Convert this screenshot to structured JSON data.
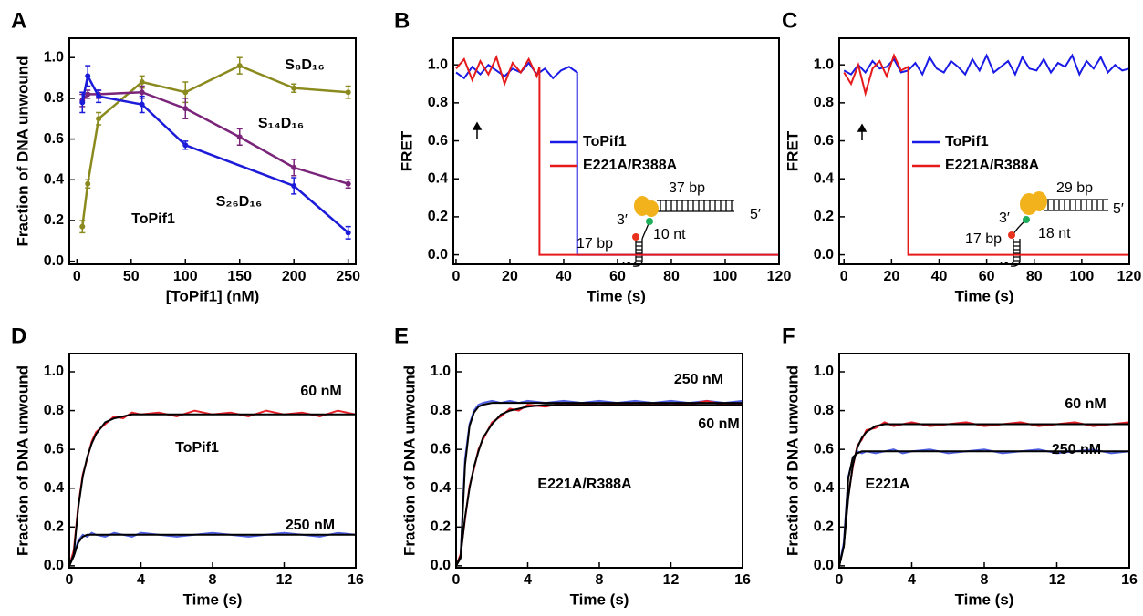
{
  "chart_data": [
    {
      "type": "line",
      "panel_label": "A",
      "xlabel": "[ToPif1] (nM)",
      "ylabel": "Fraction of DNA unwound",
      "annotation": "ToPif1",
      "x": [
        5,
        10,
        20,
        60,
        100,
        150,
        200,
        250
      ],
      "xlim": [
        -7,
        257
      ],
      "xticks": [
        0,
        50,
        100,
        150,
        200,
        250
      ],
      "ylim": [
        -0.015,
        1.095
      ],
      "yticks": [
        {
          "value": 0,
          "label": "0.0"
        },
        0.2,
        0.4,
        0.6,
        0.8,
        {
          "value": 1,
          "label": "1.0"
        }
      ],
      "series": [
        {
          "name": "S₈D₁₆",
          "color": "#8a8a1e",
          "values": [
            0.17,
            0.38,
            0.7,
            0.88,
            0.83,
            0.96,
            0.85,
            0.83
          ],
          "errors": [
            0.03,
            0.02,
            0.03,
            0.03,
            0.05,
            0.04,
            0.02,
            0.03
          ]
        },
        {
          "name": "S₁₄D₁₆",
          "color": "#7a247a",
          "values": [
            0.79,
            0.82,
            0.82,
            0.83,
            0.75,
            0.61,
            0.46,
            0.38
          ],
          "errors": [
            0.03,
            0.02,
            0.02,
            0.03,
            0.05,
            0.04,
            0.04,
            0.02
          ]
        },
        {
          "name": "S₂₆D₁₆",
          "color": "#1b1bd9",
          "x": [
            5,
            10,
            20,
            60,
            100,
            200,
            250
          ],
          "values": [
            0.78,
            0.91,
            0.81,
            0.77,
            0.57,
            0.37,
            0.14
          ],
          "errors": [
            0.05,
            0.05,
            0.03,
            0.04,
            0.02,
            0.04,
            0.03
          ]
        }
      ]
    },
    {
      "type": "line",
      "panel_label": "B",
      "xlabel": "Time (s)",
      "ylabel": "FRET",
      "legend": true,
      "xlim": [
        -1,
        120
      ],
      "xticks": [
        0,
        20,
        40,
        60,
        80,
        100,
        120
      ],
      "ylim": [
        -0.05,
        1.14
      ],
      "yticks": [
        {
          "value": 0,
          "label": "0.0"
        },
        0.2,
        0.4,
        0.6,
        0.8,
        {
          "value": 1,
          "label": "1.0"
        }
      ],
      "inset_labels": [
        "37 bp",
        "5′",
        "3′",
        "10 nt",
        "17 bp"
      ],
      "series": [
        {
          "name": "ToPif1",
          "color": "#1a1ae6",
          "x": [
            0,
            3,
            6,
            9,
            12,
            15,
            18,
            21,
            24,
            27,
            30,
            33,
            36,
            39,
            42,
            45,
            45,
            120
          ],
          "values": [
            0.96,
            0.93,
            0.99,
            0.95,
            1.0,
            0.97,
            0.94,
            0.98,
            0.96,
            1.01,
            0.95,
            0.98,
            0.93,
            0.97,
            0.99,
            0.96,
            0,
            0
          ]
        },
        {
          "name": "E221A/R388A",
          "color": "#e61a1a",
          "x": [
            0,
            3,
            6,
            9,
            12,
            15,
            18,
            21,
            24,
            27,
            30,
            31,
            31,
            120
          ],
          "values": [
            0.98,
            1.03,
            0.92,
            1.02,
            0.95,
            1.04,
            0.9,
            1.01,
            0.96,
            1.03,
            0.94,
            0.99,
            0,
            0
          ]
        }
      ]
    },
    {
      "type": "line",
      "panel_label": "C",
      "xlabel": "Time (s)",
      "ylabel": "FRET",
      "legend": true,
      "xlim": [
        -2,
        120
      ],
      "xticks": [
        0,
        20,
        40,
        60,
        80,
        100,
        120
      ],
      "ylim": [
        -0.05,
        1.14
      ],
      "yticks": [
        {
          "value": 0,
          "label": "0.0"
        },
        0.2,
        0.4,
        0.6,
        0.8,
        {
          "value": 1,
          "label": "1.0"
        }
      ],
      "inset_labels": [
        "29 bp",
        "5′",
        "3′",
        "18 nt",
        "17 bp"
      ],
      "series": [
        {
          "name": "ToPif1",
          "color": "#1a1ae6",
          "x": [
            0,
            3,
            6,
            9,
            12,
            15,
            18,
            21,
            24,
            27,
            30,
            33,
            36,
            39,
            42,
            45,
            48,
            51,
            54,
            57,
            60,
            63,
            66,
            69,
            72,
            75,
            78,
            81,
            84,
            87,
            90,
            93,
            96,
            99,
            102,
            105,
            108,
            111,
            114,
            117,
            120
          ],
          "values": [
            0.97,
            0.95,
            1.0,
            0.96,
            1.02,
            0.98,
            0.99,
            1.03,
            0.96,
            0.97,
            1.01,
            0.95,
            1.04,
            0.98,
            0.96,
            1.02,
            0.99,
            0.95,
            1.03,
            0.97,
            1.05,
            0.96,
            0.99,
            1.02,
            0.95,
            1.04,
            0.98,
            0.97,
            1.03,
            0.96,
            1.01,
            0.99,
            1.05,
            0.95,
            1.02,
            0.98,
            1.04,
            0.96,
            1.0,
            0.97,
            0.98
          ]
        },
        {
          "name": "E221A/R388A",
          "color": "#e61a1a",
          "x": [
            0,
            3,
            6,
            9,
            12,
            15,
            18,
            21,
            24,
            27,
            27,
            120
          ],
          "values": [
            0.96,
            0.9,
            1.0,
            0.85,
            0.98,
            1.02,
            0.94,
            1.05,
            0.97,
            0.99,
            0,
            0
          ]
        }
      ]
    },
    {
      "type": "line",
      "panel_label": "D",
      "xlabel": "Time (s)",
      "ylabel": "Fraction of DNA unwound",
      "annotation": "ToPif1",
      "x": [
        0,
        0.25,
        0.5,
        0.75,
        1,
        1.25,
        1.5,
        2,
        2.5,
        3,
        3.5,
        4,
        5,
        6,
        7,
        8,
        9,
        10,
        11,
        12,
        13,
        14,
        15,
        16
      ],
      "xlim": [
        0,
        16
      ],
      "xticks": [
        0,
        4,
        8,
        12,
        16
      ],
      "ylim": [
        -0.01,
        1.094
      ],
      "yticks": [
        {
          "value": 0,
          "label": "0.0"
        },
        0.2,
        0.4,
        0.6,
        0.8,
        {
          "value": 1,
          "label": "1.0"
        }
      ],
      "series": [
        {
          "name": "60 nM",
          "color": "#e8202a",
          "values": [
            0,
            0.08,
            0.31,
            0.47,
            0.55,
            0.64,
            0.69,
            0.73,
            0.77,
            0.76,
            0.79,
            0.78,
            0.79,
            0.77,
            0.8,
            0.78,
            0.79,
            0.77,
            0.8,
            0.78,
            0.79,
            0.77,
            0.8,
            0.78
          ]
        },
        {
          "name": "250 nM",
          "color": "#4f5fe0",
          "values": [
            0,
            0.06,
            0.13,
            0.16,
            0.15,
            0.17,
            0.16,
            0.15,
            0.17,
            0.16,
            0.15,
            0.17,
            0.16,
            0.15,
            0.16,
            0.17,
            0.16,
            0.15,
            0.16,
            0.17,
            0.16,
            0.15,
            0.17,
            0.16
          ]
        },
        {
          "color": "#000000",
          "values": [
            0,
            0.06,
            0.3,
            0.46,
            0.56,
            0.63,
            0.68,
            0.74,
            0.76,
            0.77,
            0.78,
            0.78,
            0.78,
            0.78,
            0.78,
            0.78,
            0.78,
            0.78,
            0.78,
            0.78,
            0.78,
            0.78,
            0.78,
            0.78
          ]
        },
        {
          "color": "#000000",
          "values": [
            0,
            0.05,
            0.12,
            0.15,
            0.16,
            0.16,
            0.16,
            0.16,
            0.16,
            0.16,
            0.16,
            0.16,
            0.16,
            0.16,
            0.16,
            0.16,
            0.16,
            0.16,
            0.16,
            0.16,
            0.16,
            0.16,
            0.16,
            0.16
          ]
        }
      ]
    },
    {
      "type": "line",
      "panel_label": "E",
      "xlabel": "Time (s)",
      "ylabel": "Fraction of DNA unwound",
      "annotation": "E221A/R388A",
      "x": [
        0,
        0.25,
        0.5,
        0.75,
        1,
        1.25,
        1.5,
        2,
        2.5,
        3,
        3.5,
        4,
        5,
        6,
        7,
        8,
        9,
        10,
        11,
        12,
        13,
        14,
        15,
        16
      ],
      "xlim": [
        0,
        16
      ],
      "xticks": [
        0,
        4,
        8,
        12,
        16
      ],
      "ylim": [
        -0.01,
        1.094
      ],
      "yticks": [
        {
          "value": 0,
          "label": "0.0"
        },
        0.2,
        0.4,
        0.6,
        0.8,
        {
          "value": 1,
          "label": "1.0"
        }
      ],
      "series": [
        {
          "name": "250 nM",
          "color": "#4f5fe0",
          "values": [
            0,
            0.05,
            0.55,
            0.73,
            0.8,
            0.83,
            0.84,
            0.85,
            0.84,
            0.85,
            0.84,
            0.85,
            0.84,
            0.85,
            0.84,
            0.85,
            0.84,
            0.85,
            0.84,
            0.85,
            0.84,
            0.85,
            0.84,
            0.85
          ]
        },
        {
          "name": "60 nM",
          "color": "#e8202a",
          "values": [
            0,
            0.06,
            0.24,
            0.41,
            0.5,
            0.6,
            0.65,
            0.74,
            0.77,
            0.81,
            0.8,
            0.83,
            0.82,
            0.84,
            0.83,
            0.84,
            0.83,
            0.84,
            0.83,
            0.84,
            0.83,
            0.85,
            0.83,
            0.84
          ]
        },
        {
          "color": "#000000",
          "values": [
            0,
            0.04,
            0.52,
            0.72,
            0.79,
            0.82,
            0.83,
            0.84,
            0.84,
            0.84,
            0.84,
            0.84,
            0.84,
            0.84,
            0.84,
            0.84,
            0.84,
            0.84,
            0.84,
            0.84,
            0.84,
            0.84,
            0.84,
            0.84
          ]
        },
        {
          "color": "#000000",
          "values": [
            0,
            0.05,
            0.25,
            0.4,
            0.51,
            0.59,
            0.66,
            0.73,
            0.78,
            0.8,
            0.81,
            0.82,
            0.83,
            0.83,
            0.83,
            0.83,
            0.83,
            0.83,
            0.83,
            0.83,
            0.83,
            0.83,
            0.83,
            0.83
          ]
        }
      ]
    },
    {
      "type": "line",
      "panel_label": "F",
      "xlabel": "Time (s)",
      "ylabel": "Fraction of DNA unwound",
      "annotation": "E221A",
      "x": [
        0,
        0.25,
        0.5,
        0.75,
        1,
        1.25,
        1.5,
        2,
        2.5,
        3,
        3.5,
        4,
        5,
        6,
        7,
        8,
        9,
        10,
        11,
        12,
        13,
        14,
        15,
        16
      ],
      "xlim": [
        0,
        16
      ],
      "xticks": [
        0,
        4,
        8,
        12,
        16
      ],
      "ylim": [
        -0.01,
        1.094
      ],
      "yticks": [
        {
          "value": 0,
          "label": "0.0"
        },
        0.2,
        0.4,
        0.6,
        0.8,
        {
          "value": 1,
          "label": "1.0"
        }
      ],
      "series": [
        {
          "name": "60 nM",
          "color": "#e8202a",
          "values": [
            0,
            0.11,
            0.36,
            0.51,
            0.62,
            0.65,
            0.7,
            0.71,
            0.74,
            0.72,
            0.73,
            0.74,
            0.72,
            0.73,
            0.74,
            0.72,
            0.73,
            0.74,
            0.72,
            0.73,
            0.74,
            0.72,
            0.73,
            0.74
          ]
        },
        {
          "name": "250 nM",
          "color": "#4f5fe0",
          "values": [
            0,
            0.12,
            0.46,
            0.55,
            0.59,
            0.58,
            0.59,
            0.58,
            0.59,
            0.6,
            0.58,
            0.59,
            0.6,
            0.58,
            0.59,
            0.6,
            0.58,
            0.59,
            0.6,
            0.58,
            0.59,
            0.6,
            0.58,
            0.59
          ]
        },
        {
          "color": "#000000",
          "values": [
            0,
            0.1,
            0.35,
            0.52,
            0.61,
            0.66,
            0.69,
            0.72,
            0.73,
            0.73,
            0.73,
            0.73,
            0.73,
            0.73,
            0.73,
            0.73,
            0.73,
            0.73,
            0.73,
            0.73,
            0.73,
            0.73,
            0.73,
            0.73
          ]
        },
        {
          "color": "#000000",
          "values": [
            0,
            0.1,
            0.45,
            0.56,
            0.58,
            0.59,
            0.59,
            0.59,
            0.59,
            0.59,
            0.59,
            0.59,
            0.59,
            0.59,
            0.59,
            0.59,
            0.59,
            0.59,
            0.59,
            0.59,
            0.59,
            0.59,
            0.59,
            0.59
          ]
        }
      ]
    }
  ]
}
